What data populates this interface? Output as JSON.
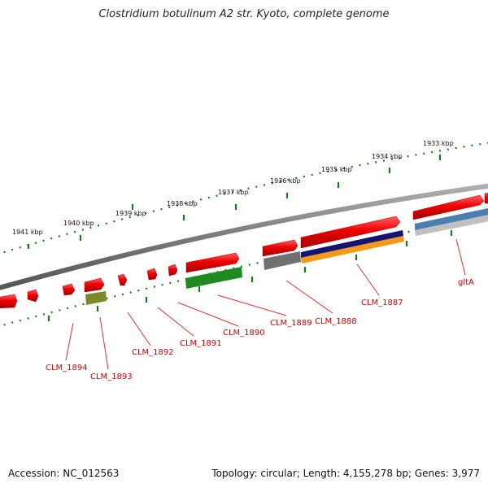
{
  "title": "Clostridium botulinum A2 str. Kyoto, complete genome",
  "footer": {
    "accession": "Accession: NC_012563",
    "summary": "Topology: circular; Length: 4,155,278 bp; Genes: 3,977"
  },
  "scale_labels": [
    "1941 kbp",
    "1940 kbp",
    "1939 kbp",
    "1938 kbp",
    "1937 kbp",
    "1936 kbp",
    "1935 kbp",
    "1934 kbp",
    "1933 kbp"
  ],
  "gene_labels": [
    "CLM_1894",
    "CLM_1893",
    "CLM_1892",
    "CLM_1891",
    "CLM_1890",
    "CLM_1889",
    "CLM_1888",
    "CLM_1887",
    "gltA"
  ],
  "colors": {
    "gene": "#ee0000",
    "backbone": "#888888",
    "tick": "#1a7a1a",
    "label": "#d00000",
    "green": "#1f8a1f",
    "olive": "#7a8a2a",
    "navy": "#141470",
    "orange": "#f39a1a",
    "gray": "#707070",
    "steel": "#4a7fb0",
    "silver": "#c0c0c0"
  }
}
